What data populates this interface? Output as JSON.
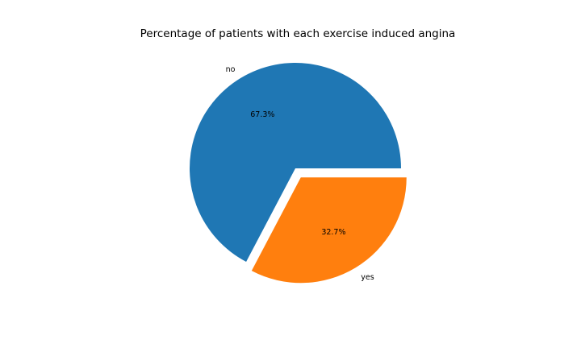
{
  "chart_data": {
    "type": "pie",
    "title": "Percentage of patients with each exercise induced angina",
    "labels": [
      "no",
      "yes"
    ],
    "values": [
      67.3,
      32.7
    ],
    "autopct_labels": [
      "67.3%",
      "32.7%"
    ],
    "colors": [
      "#1f77b4",
      "#ff7f0e"
    ],
    "explode": [
      0,
      0.1
    ],
    "start_angle_deg": 0,
    "direction": "counterclockwise",
    "legend": "none"
  }
}
